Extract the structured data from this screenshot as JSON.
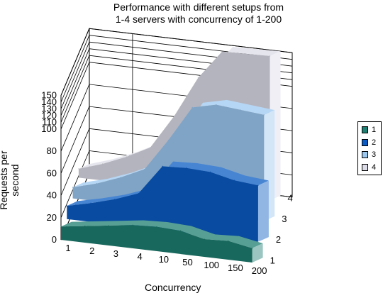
{
  "chart_data": {
    "type": "area",
    "title_lines": [
      "Performance with different setups from",
      "1-4 servers with concurrency of 1-200"
    ],
    "xlabel": "Concurrency",
    "ylabel": "Requests per second",
    "categories": [
      "1",
      "2",
      "3",
      "4",
      "10",
      "50",
      "100",
      "150",
      "200"
    ],
    "depth_categories": [
      "1",
      "2",
      "3",
      "4"
    ],
    "yticks": [
      0,
      20,
      40,
      60,
      80,
      100,
      110,
      120,
      130,
      140,
      150
    ],
    "ylim": [
      0,
      150
    ],
    "series": [
      {
        "name": "1",
        "color": "#1f7f72",
        "values": [
          12,
          15,
          18,
          21,
          22,
          21,
          16,
          17,
          13
        ]
      },
      {
        "name": "2",
        "color": "#0a5cc4",
        "values": [
          12,
          17,
          23,
          31,
          58,
          59,
          58,
          53,
          51
        ]
      },
      {
        "name": "3",
        "color": "#9cc8f0",
        "values": [
          10,
          16,
          24,
          34,
          63,
          95,
          100,
          98,
          96
        ]
      },
      {
        "name": "4",
        "color": "#dcdce8",
        "values": [
          8,
          15,
          24,
          35,
          66,
          105,
          148,
          149,
          150
        ]
      }
    ],
    "legend_position": "right",
    "grid": true
  }
}
